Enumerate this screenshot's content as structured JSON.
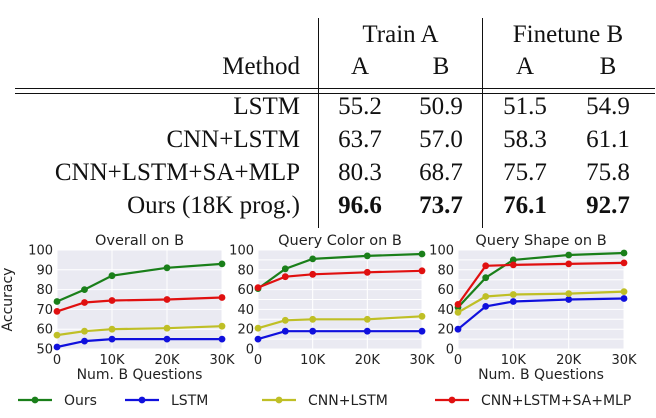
{
  "table": {
    "group_headers": [
      "Train A",
      "Finetune B"
    ],
    "method_header": "Method",
    "sub_headers": [
      "A",
      "B",
      "A",
      "B"
    ],
    "rows": [
      {
        "method": "LSTM",
        "values": [
          "55.2",
          "50.9",
          "51.5",
          "54.9"
        ],
        "bold": false
      },
      {
        "method": "CNN+LSTM",
        "values": [
          "63.7",
          "57.0",
          "58.3",
          "61.1"
        ],
        "bold": false
      },
      {
        "method": "CNN+LSTM+SA+MLP",
        "values": [
          "80.3",
          "68.7",
          "75.7",
          "75.8"
        ],
        "bold": false
      },
      {
        "method": "Ours (18K prog.)",
        "values": [
          "96.6",
          "73.7",
          "76.1",
          "92.7"
        ],
        "bold": true
      }
    ]
  },
  "chart_data": [
    {
      "type": "line",
      "title": "Overall on B",
      "xlabel": "Num. B Questions",
      "ylabel": "Accuracy",
      "x": [
        0,
        5000,
        10000,
        20000,
        30000
      ],
      "xticks": [
        "0",
        "10K",
        "20K",
        "30K"
      ],
      "yticks": [
        "50",
        "60",
        "70",
        "80",
        "90",
        "100"
      ],
      "ylim": [
        50,
        100
      ],
      "grid": true,
      "series": [
        {
          "name": "Ours",
          "color": "#1a7f1a",
          "values": [
            74,
            80,
            87,
            91,
            93
          ]
        },
        {
          "name": "LSTM",
          "color": "#1010dd",
          "values": [
            51,
            54,
            55,
            55,
            55
          ]
        },
        {
          "name": "CNN+LSTM",
          "color": "#bfbf26",
          "values": [
            57,
            59,
            60,
            60.5,
            61.5
          ]
        },
        {
          "name": "CNN+LSTM+SA+MLP",
          "color": "#e01010",
          "values": [
            69,
            73.5,
            74.5,
            75,
            76
          ]
        }
      ]
    },
    {
      "type": "line",
      "title": "Query Color on B",
      "xlabel": "",
      "ylabel": "",
      "x": [
        0,
        5000,
        10000,
        20000,
        30000
      ],
      "xticks": [
        "0",
        "10K",
        "20K",
        "30K"
      ],
      "yticks": [
        "0",
        "10",
        "20",
        "30",
        "40",
        "50",
        "60",
        "70",
        "80",
        "90",
        "100"
      ],
      "ylim": [
        0,
        100
      ],
      "grid": true,
      "series": [
        {
          "name": "Ours",
          "color": "#1a7f1a",
          "values": [
            61,
            81,
            91,
            94,
            96
          ]
        },
        {
          "name": "LSTM",
          "color": "#1010dd",
          "values": [
            10,
            18,
            18,
            18,
            18
          ]
        },
        {
          "name": "CNN+LSTM",
          "color": "#bfbf26",
          "values": [
            21,
            29,
            30,
            30,
            33
          ]
        },
        {
          "name": "CNN+LSTM+SA+MLP",
          "color": "#e01010",
          "values": [
            62,
            73,
            75.5,
            77.5,
            79
          ]
        }
      ]
    },
    {
      "type": "line",
      "title": "Query Shape on B",
      "xlabel": "Num. B Questions",
      "ylabel": "",
      "x": [
        0,
        5000,
        10000,
        20000,
        30000
      ],
      "xticks": [
        "0",
        "10K",
        "20K",
        "30K"
      ],
      "yticks": [
        "0",
        "10",
        "20",
        "30",
        "40",
        "50",
        "60",
        "70",
        "80",
        "90",
        "100"
      ],
      "ylim": [
        0,
        100
      ],
      "grid": true,
      "series": [
        {
          "name": "Ours",
          "color": "#1a7f1a",
          "values": [
            42,
            72,
            90,
            95,
            97
          ]
        },
        {
          "name": "LSTM",
          "color": "#1010dd",
          "values": [
            20,
            43,
            48,
            50,
            51
          ]
        },
        {
          "name": "CNN+LSTM",
          "color": "#bfbf26",
          "values": [
            37,
            53,
            55,
            56,
            58
          ]
        },
        {
          "name": "CNN+LSTM+SA+MLP",
          "color": "#e01010",
          "values": [
            45,
            84,
            85,
            86,
            87
          ]
        }
      ]
    }
  ],
  "legend": [
    {
      "name": "Ours",
      "color": "#1a7f1a"
    },
    {
      "name": "LSTM",
      "color": "#1010dd"
    },
    {
      "name": "CNN+LSTM",
      "color": "#bfbf26"
    },
    {
      "name": "CNN+LSTM+SA+MLP",
      "color": "#e01010"
    }
  ]
}
